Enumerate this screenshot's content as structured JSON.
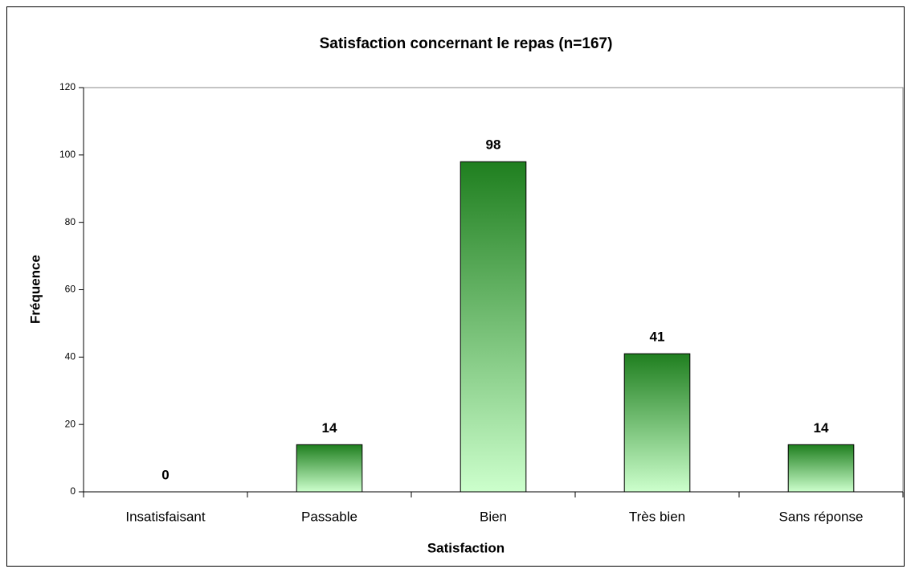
{
  "chart_data": {
    "type": "bar",
    "title": "Satisfaction concernant le repas (n=167)",
    "x_label": "Satisfaction",
    "y_label": "Fréquence",
    "categories": [
      "Insatisfaisant",
      "Passable",
      "Bien",
      "Très bien",
      "Sans réponse"
    ],
    "values": [
      0,
      14,
      98,
      41,
      14
    ],
    "color": "#1f7f1f",
    "color_end": "#ccffcc",
    "ylim": [
      0,
      120
    ],
    "yticks": [
      0,
      20,
      40,
      60,
      80,
      100,
      120
    ]
  }
}
